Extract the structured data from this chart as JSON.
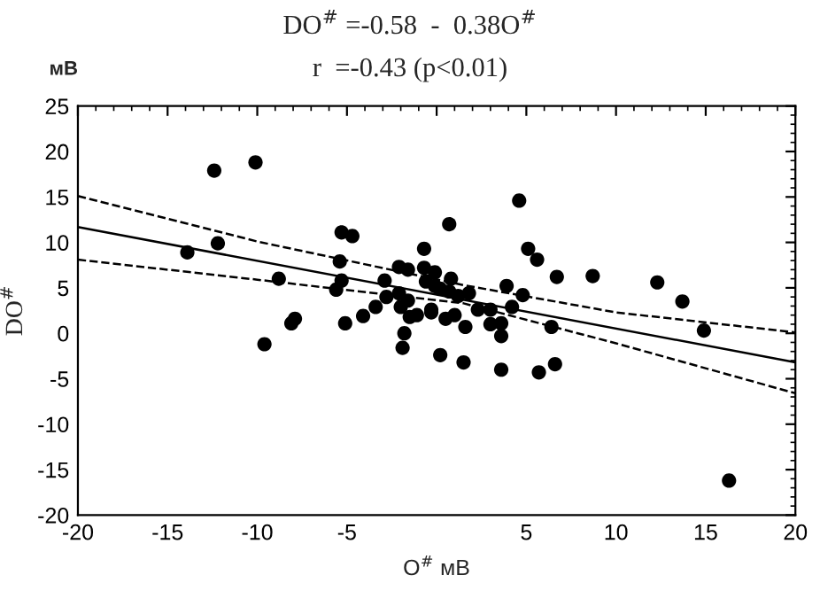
{
  "chart_data": {
    "type": "scatter",
    "title": "DO$^{#}$ =-0.58  -  0.38O$^{#}$",
    "subtitle": "r  =-0.43 (p<0.01)",
    "xlabel": "O$^{#}$ мВ",
    "ylabel": "DO$^{#}$",
    "annotations": [
      "мВ"
    ],
    "xlim": [
      -20,
      20
    ],
    "ylim": [
      -20,
      25
    ],
    "xticks": [
      -20,
      -15,
      -10,
      -5,
      {
        "value": 0,
        "label": null
      },
      5,
      10,
      15,
      20
    ],
    "yticks": [
      -20,
      -15,
      -10,
      -5,
      0,
      5,
      10,
      15,
      20,
      25
    ],
    "grid": false,
    "legend": false,
    "series": [
      {
        "color": "#000000",
        "marker": "circle",
        "x": [
          -12.4,
          -10.1,
          -13.9,
          -12.2,
          -5.3,
          -4.7,
          -5.4,
          -8.8,
          -5.3,
          -5.6,
          -9.6,
          -8.1,
          -7.9,
          -5.1,
          -4.1,
          -3.4,
          -2.9,
          -2.8,
          -2.1,
          -1.6,
          -0.7,
          -1.6,
          -1.5,
          -1.1,
          -1.8,
          -1.9,
          0.2,
          -0.3,
          -0.7,
          -0.6,
          -0.1,
          4.6,
          0.7,
          5.1,
          5.6,
          6.7,
          8.7,
          12.3,
          13.7,
          14.9,
          16.3,
          3.9,
          4.8,
          4.2,
          3.0,
          6.4,
          3.0,
          3.6,
          3.6,
          6.6,
          5.7,
          3.6,
          1.5,
          -0.1,
          0.8,
          1.8,
          1.6,
          0.5,
          1.0,
          -0.3,
          -2.1,
          -2.0,
          0.2,
          0.7,
          1.2,
          2.3
        ],
        "values": [
          17.9,
          18.8,
          8.9,
          9.9,
          11.1,
          10.7,
          7.9,
          6.0,
          5.8,
          4.8,
          -1.2,
          1.1,
          1.6,
          1.1,
          1.9,
          2.9,
          5.8,
          4.0,
          7.3,
          7.0,
          9.3,
          3.6,
          1.8,
          2.0,
          0.0,
          -1.6,
          -2.4,
          2.3,
          7.2,
          5.7,
          5.2,
          14.6,
          12.0,
          9.3,
          8.1,
          6.2,
          6.3,
          5.6,
          3.5,
          0.3,
          -16.2,
          5.2,
          4.2,
          2.9,
          2.6,
          0.7,
          1.0,
          1.1,
          -0.3,
          -3.4,
          -4.3,
          -4.0,
          -3.2,
          6.7,
          6.0,
          4.4,
          0.7,
          1.6,
          2.0,
          2.6,
          4.4,
          2.9,
          4.9,
          4.6,
          4.1,
          2.6
        ]
      },
      {
        "type": "line",
        "color": "#000000",
        "line_style": "solid",
        "x": [
          -20,
          20
        ],
        "values": [
          11.7,
          -3.2
        ]
      },
      {
        "type": "line",
        "color": "#000000",
        "line_style": "dashed",
        "x": [
          -20,
          -10,
          1.5,
          10,
          20
        ],
        "values": [
          15.1,
          10.1,
          5.3,
          2.3,
          0.1
        ]
      },
      {
        "type": "line",
        "color": "#000000",
        "line_style": "dashed",
        "x": [
          -20,
          -10,
          1.5,
          10,
          20
        ],
        "values": [
          8.1,
          5.9,
          3.3,
          -1.1,
          -6.6
        ]
      }
    ]
  }
}
